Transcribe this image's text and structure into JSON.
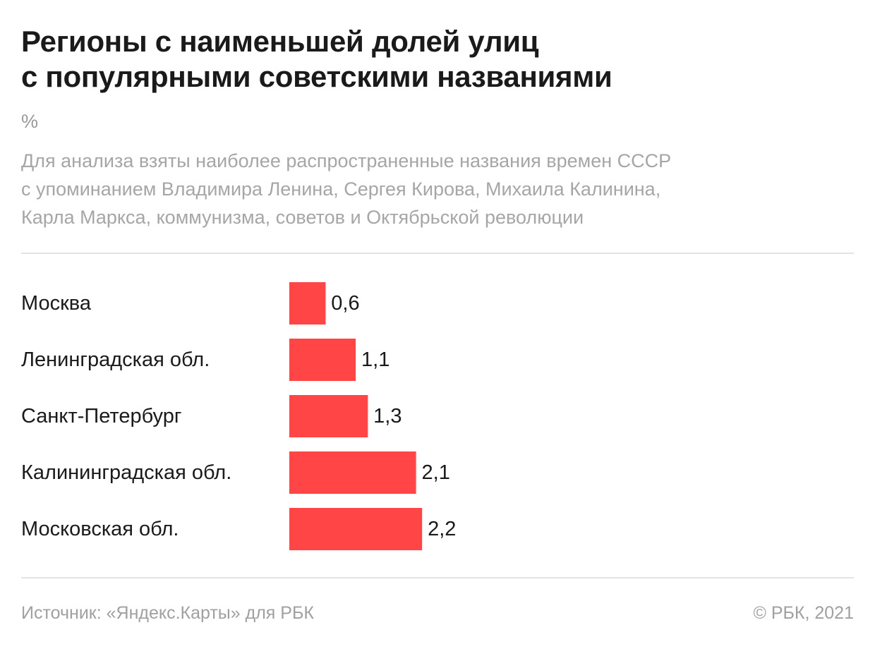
{
  "title_lines": [
    "Регионы с наименьшей долей улиц",
    "с популярными советскими названиями"
  ],
  "unit": "%",
  "subtitle_lines": [
    "Для анализа взяты наиболее распространенные названия времен СССР",
    "с упоминанием Владимира Ленина, Сергея Кирова, Михаила Калинина,",
    "Карла Маркса, коммунизма, советов и Октябрьской революции"
  ],
  "footer": {
    "source": "Источник: «Яндекс.Карты» для РБК",
    "copyright": "© РБК, 2021"
  },
  "colors": {
    "bar": "#ff4545",
    "text": "#1a1a1a",
    "muted": "#a6a6a6"
  },
  "chart_data": {
    "type": "bar",
    "orientation": "horizontal",
    "categories": [
      "Москва",
      "Ленинградская обл.",
      "Санкт-Петербург",
      "Калининградская обл.",
      "Московская обл."
    ],
    "values": [
      0.6,
      1.1,
      1.3,
      2.1,
      2.2
    ],
    "value_labels": [
      "0,6",
      "1,1",
      "1,3",
      "2,1",
      "2,2"
    ],
    "title": "Регионы с наименьшей долей улиц с популярными советскими названиями",
    "unit": "%",
    "xlabel": "",
    "ylabel": "",
    "grid": false,
    "legend": "none"
  }
}
